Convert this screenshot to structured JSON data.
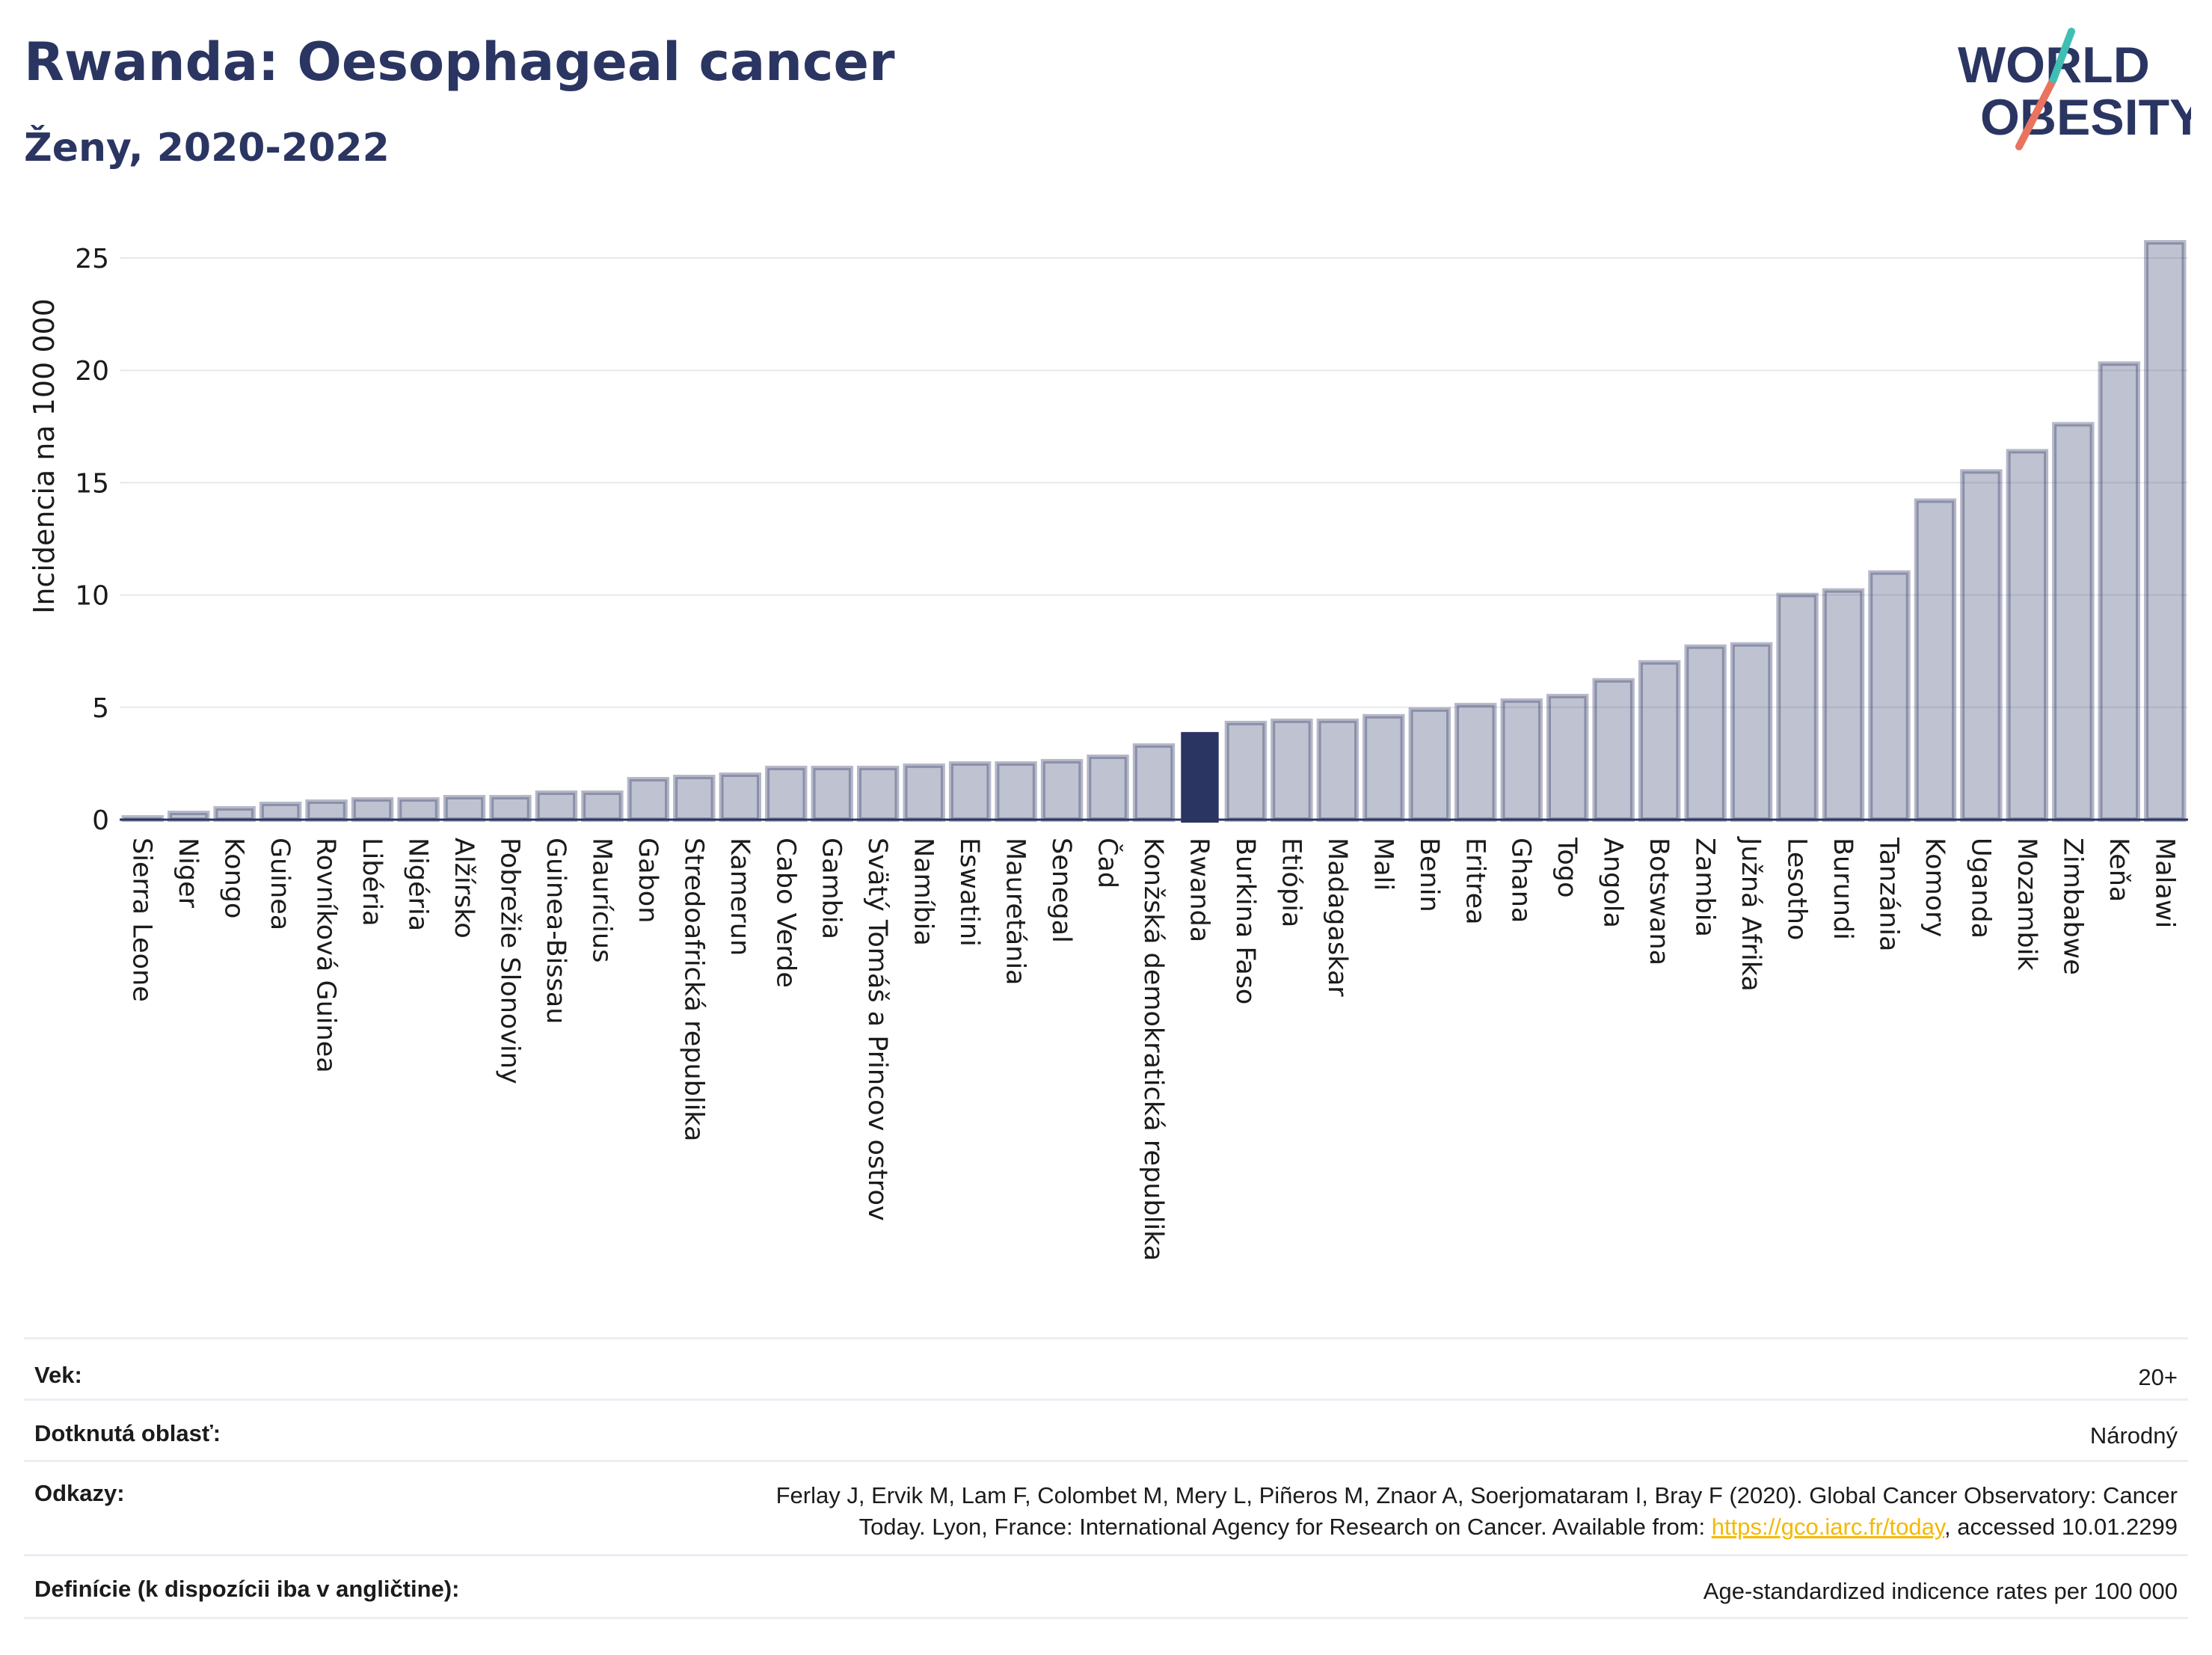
{
  "header": {
    "title": "Rwanda: Oesophageal cancer",
    "subtitle": "Ženy, 2020-2022"
  },
  "logo": {
    "line1": "WORLD",
    "line2": "OBESITY"
  },
  "colors": {
    "bar": "#2a3562",
    "bar_fill_opacity": 0.3,
    "highlight": "#2a3562",
    "grid": "#e6e8ee",
    "link": "#f5b800"
  },
  "chart_data": {
    "type": "bar",
    "ylabel": "Incidencia na 100 000",
    "ylim": [
      0,
      26.5
    ],
    "yticks": [
      0,
      5,
      10,
      15,
      20,
      25
    ],
    "highlight": "Rwanda",
    "categories": [
      "Sierra Leone",
      "Niger",
      "Kongo",
      "Guinea",
      "Rovníková Guinea",
      "Libéria",
      "Nigéria",
      "Alžírsko",
      "Pobrežie Slonoviny",
      "Guinea-Bissau",
      "Maurícius",
      "Gabon",
      "Stredoafrická republika",
      "Kamerun",
      "Cabo Verde",
      "Gambia",
      "Svätý Tomáš a Princov ostrov",
      "Namíbia",
      "Eswatini",
      "Mauretánia",
      "Senegal",
      "Čad",
      "Konžská demokratická republika",
      "Rwanda",
      "Burkina Faso",
      "Etiópia",
      "Madagaskar",
      "Mali",
      "Benin",
      "Eritrea",
      "Ghana",
      "Togo",
      "Angola",
      "Botswana",
      "Zambia",
      "Južná Afrika",
      "Lesotho",
      "Burundi",
      "Tanzánia",
      "Komory",
      "Uganda",
      "Mozambik",
      "Zimbabwe",
      "Keňa",
      "Malawi"
    ],
    "values": [
      0.1,
      0.3,
      0.5,
      0.7,
      0.8,
      0.9,
      0.9,
      1.0,
      1.0,
      1.2,
      1.2,
      1.8,
      1.9,
      2.0,
      2.3,
      2.3,
      2.3,
      2.4,
      2.5,
      2.5,
      2.6,
      2.8,
      3.3,
      3.9,
      4.3,
      4.4,
      4.4,
      4.6,
      4.9,
      5.1,
      5.3,
      5.5,
      6.2,
      7.0,
      7.7,
      7.8,
      10.0,
      10.2,
      11.0,
      14.2,
      15.5,
      16.4,
      17.6,
      20.3,
      25.7
    ]
  },
  "meta": [
    {
      "label": "Vek:",
      "value": "20+"
    },
    {
      "label": "Dotknutá oblasť:",
      "value": "Národný"
    },
    {
      "label": "Odkazy:",
      "value_line1": "Ferlay J, Ervik M, Lam F, Colombet M, Mery L, Piñeros M, Znaor A, Soerjomataram I, Bray F (2020). Global Cancer Observatory: Cancer",
      "value_line2_before": "Today. Lyon, France: International Agency for Research on Cancer. Available from: ",
      "link": "https://gco.iarc.fr/today",
      "value_line2_after": ", accessed 10.01.2299"
    },
    {
      "label": "Definície (k dispozícii iba v angličtine):",
      "value": "Age-standardized indicence rates per 100 000"
    }
  ]
}
